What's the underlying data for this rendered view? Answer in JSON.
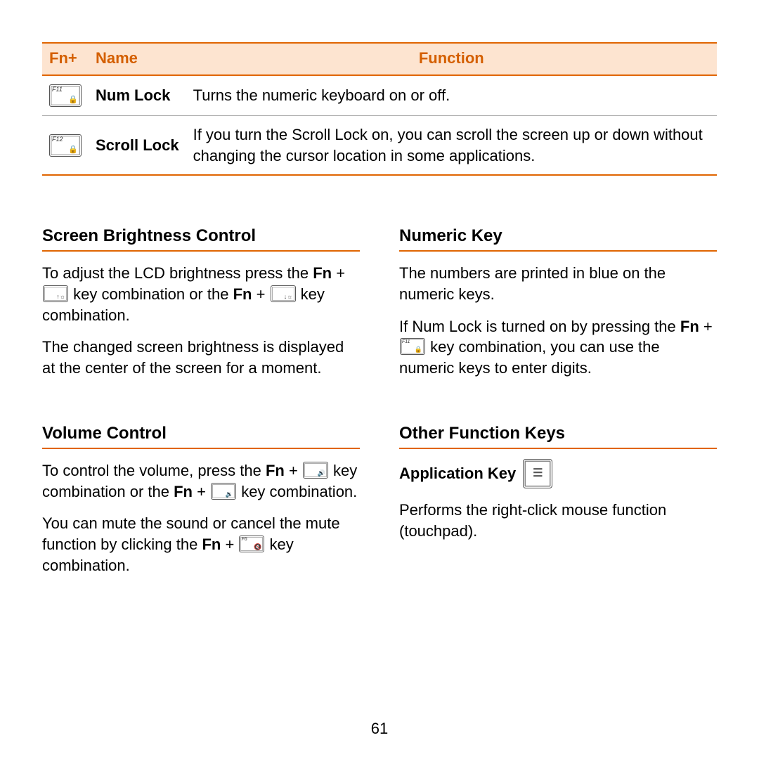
{
  "colors": {
    "accent": "#e06500",
    "header_bg": "#fde4d0",
    "header_text": "#d45f00",
    "row_border": "#b0b0b0",
    "text": "#000000",
    "page_bg": "#ffffff"
  },
  "typography": {
    "body_fontsize_pt": 16,
    "heading_fontsize_pt": 18,
    "font_family": "Arial"
  },
  "table": {
    "columns": [
      "Fn+",
      "Name",
      "Function"
    ],
    "rows": [
      {
        "key_label": "F11",
        "key_glyph": "🔒",
        "name": "Num Lock",
        "function": "Turns the numeric keyboard on or off."
      },
      {
        "key_label": "F12",
        "key_glyph": "🔒",
        "name": "Scroll Lock",
        "function": "If you turn the Scroll Lock on, you can scroll the screen up or down without changing the cursor location in some applications."
      }
    ]
  },
  "sections": {
    "brightness": {
      "title": "Screen Brightness Control",
      "p1a": "To adjust the LCD brightness press the ",
      "fn": "Fn",
      "p1b": " + ",
      "key1_glyph": "↑☼",
      "p1c": " key combination or the ",
      "p1d": " + ",
      "key2_glyph": "↓☼",
      "p1e": " key combination.",
      "p2": "The changed screen brightness is displayed at the center of the screen for a moment."
    },
    "volume": {
      "title": "Volume Control",
      "p1a": "To control the volume, press the ",
      "fn": "Fn",
      "p1b": " + ",
      "key1_glyph": "🔊",
      "p1c": " key combination or the ",
      "p1d": " + ",
      "key2_glyph": "🔉",
      "p1e": " key combination.",
      "p2a": "You can mute the sound or cancel the mute function by clicking the ",
      "p2b": " + ",
      "key3_label": "F6",
      "key3_glyph": "🔇",
      "p2c": " key combination."
    },
    "numeric": {
      "title": "Numeric Key",
      "p1": "The numbers are printed in blue on the numeric keys.",
      "p2a": "If Num Lock is turned on by pressing the ",
      "fn": "Fn",
      "p2b": " + ",
      "key_label": "F11",
      "key_glyph": "🔒",
      "p2c": " key combination, you can use the numeric keys to enter digits."
    },
    "other": {
      "title": "Other Function Keys",
      "subhead": "Application Key",
      "key_glyph": "☰",
      "p1": "Performs the right-click mouse function (touchpad)."
    }
  },
  "page_number": "61"
}
